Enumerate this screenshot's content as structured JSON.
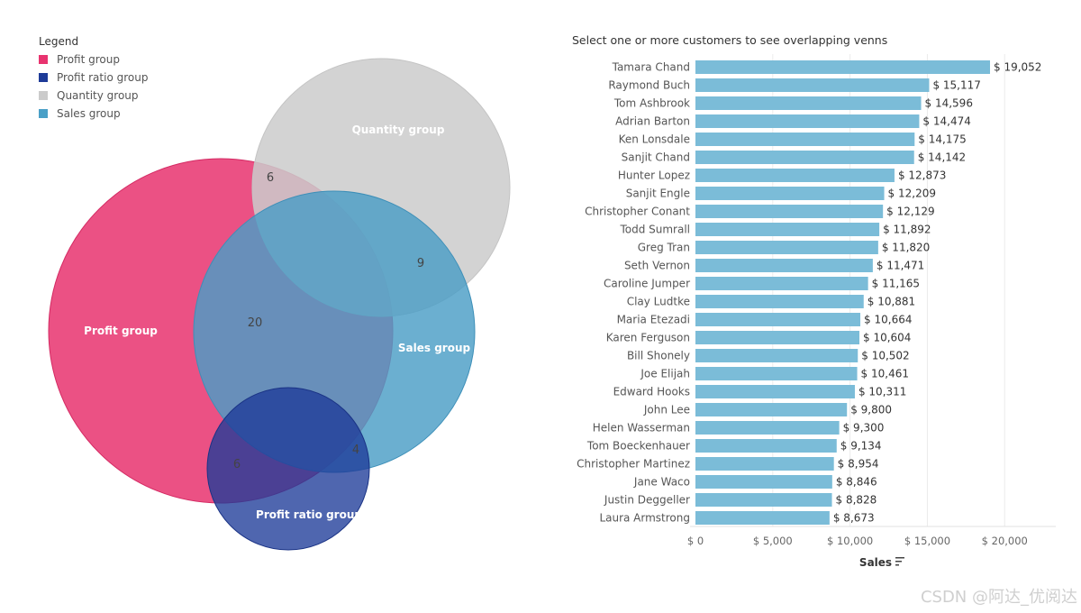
{
  "legend": {
    "title": "Legend",
    "items": [
      {
        "label": "Profit group",
        "color": "#e8336f"
      },
      {
        "label": "Profit ratio group",
        "color": "#1e3b98"
      },
      {
        "label": "Quantity group",
        "color": "#cbcbcb"
      },
      {
        "label": "Sales group",
        "color": "#4aa0c7"
      }
    ]
  },
  "venn": {
    "sets": [
      {
        "name": "Profit group",
        "color": "#e8336f"
      },
      {
        "name": "Quantity group",
        "color": "#cbcbcb"
      },
      {
        "name": "Sales group",
        "color": "#4aa0c7"
      },
      {
        "name": "Profit ratio group",
        "color": "#1e3b98"
      }
    ],
    "overlap_counts": [
      "6",
      "9",
      "20",
      "6",
      "4"
    ]
  },
  "chart_data": {
    "type": "bar",
    "orientation": "horizontal",
    "title": "Select one or more customers to see overlapping venns",
    "categories": [
      "Tamara Chand",
      "Raymond Buch",
      "Tom Ashbrook",
      "Adrian Barton",
      "Ken Lonsdale",
      "Sanjit Chand",
      "Hunter Lopez",
      "Sanjit Engle",
      "Christopher Conant",
      "Todd Sumrall",
      "Greg Tran",
      "Seth Vernon",
      "Caroline Jumper",
      "Clay Ludtke",
      "Maria Etezadi",
      "Karen Ferguson",
      "Bill Shonely",
      "Joe Elijah",
      "Edward Hooks",
      "John Lee",
      "Helen Wasserman",
      "Tom Boeckenhauer",
      "Christopher Martinez",
      "Jane Waco",
      "Justin Deggeller",
      "Laura Armstrong"
    ],
    "values": [
      19052,
      15117,
      14596,
      14474,
      14175,
      14142,
      12873,
      12209,
      12129,
      11892,
      11820,
      11471,
      11165,
      10881,
      10664,
      10604,
      10502,
      10461,
      10311,
      9800,
      9300,
      9134,
      8954,
      8846,
      8828,
      8673
    ],
    "value_labels": [
      "$ 19,052",
      "$ 15,117",
      "$ 14,596",
      "$ 14,474",
      "$ 14,175",
      "$ 14,142",
      "$ 12,873",
      "$ 12,209",
      "$ 12,129",
      "$ 11,892",
      "$ 11,820",
      "$ 11,471",
      "$ 11,165",
      "$ 10,881",
      "$ 10,664",
      "$ 10,604",
      "$ 10,502",
      "$ 10,461",
      "$ 10,311",
      "$ 9,800",
      "$ 9,300",
      "$ 9,134",
      "$ 8,954",
      "$ 8,846",
      "$ 8,828",
      "$ 8,673"
    ],
    "xlabel": "Sales",
    "xlim": [
      0,
      23500
    ],
    "xticks": [
      0,
      5000,
      10000,
      15000,
      20000
    ],
    "xtick_labels": [
      "$ 0",
      "$ 5,000",
      "$ 10,000",
      "$ 15,000",
      "$ 20,000"
    ],
    "bar_color": "#7bbcd8",
    "grid": true
  },
  "watermark": "CSDN @阿达_优阅达"
}
